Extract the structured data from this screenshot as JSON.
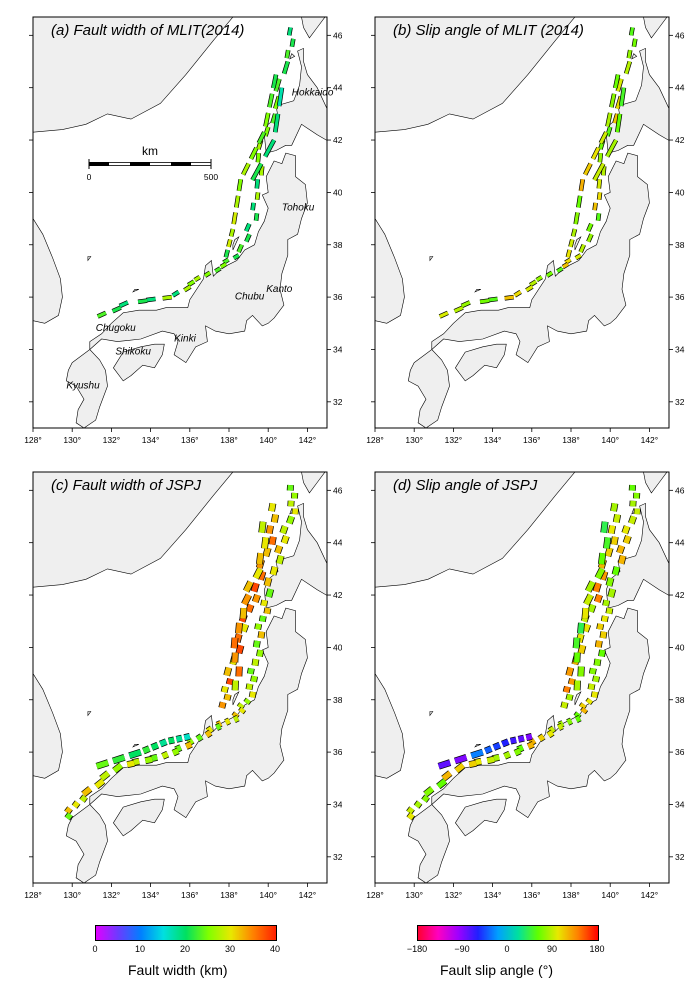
{
  "panels": [
    {
      "id": "a",
      "title": "(a) Fault width of MLIT(2014)",
      "variable": "width",
      "dataset": "MLIT"
    },
    {
      "id": "b",
      "title": "(b) Slip angle of MLIT (2014)",
      "variable": "slip",
      "dataset": "MLIT"
    },
    {
      "id": "c",
      "title": "(c) Fault width of JSPJ",
      "variable": "width",
      "dataset": "JSPJ"
    },
    {
      "id": "d",
      "title": "(d) Slip angle of JSPJ",
      "variable": "slip",
      "dataset": "JSPJ"
    }
  ],
  "axes": {
    "lon_ticks": [
      "128°",
      "130°",
      "132°",
      "134°",
      "136°",
      "138°",
      "140°",
      "142°"
    ],
    "lat_ticks": [
      "32°",
      "34°",
      "36°",
      "38°",
      "40°",
      "42°",
      "44°",
      "46°"
    ],
    "lon_range": [
      128,
      143
    ],
    "lat_range": [
      31,
      46.7
    ]
  },
  "scalebar": {
    "unit": "km",
    "start": "0",
    "end": "500"
  },
  "regions": [
    "Hokkaido",
    "Tohoku",
    "Kanto",
    "Chubu",
    "Kinki",
    "Chugoku",
    "Shikoku",
    "Kyushu"
  ],
  "colorbars": [
    {
      "label": "Fault width (km)",
      "ticks": [
        "0",
        "10",
        "20",
        "30",
        "40"
      ],
      "min": 0,
      "max": 40,
      "colors": [
        "#e000ff",
        "#6a3cff",
        "#0080ff",
        "#00e0e0",
        "#00e060",
        "#80ff00",
        "#e8e800",
        "#ff8000",
        "#ff2000"
      ]
    },
    {
      "label": "Fault slip angle (°)",
      "ticks": [
        "−180",
        "−90",
        "0",
        "90",
        "180"
      ],
      "min": -180,
      "max": 180,
      "colors": [
        "#ff0030",
        "#ff00c0",
        "#a000ff",
        "#2020ff",
        "#00a0ff",
        "#00e0a0",
        "#60ff00",
        "#e8e800",
        "#ff8000",
        "#ff0000"
      ]
    }
  ],
  "colors": {
    "land": "#efefef",
    "sea": "#ffffff",
    "frame": "#000000"
  }
}
